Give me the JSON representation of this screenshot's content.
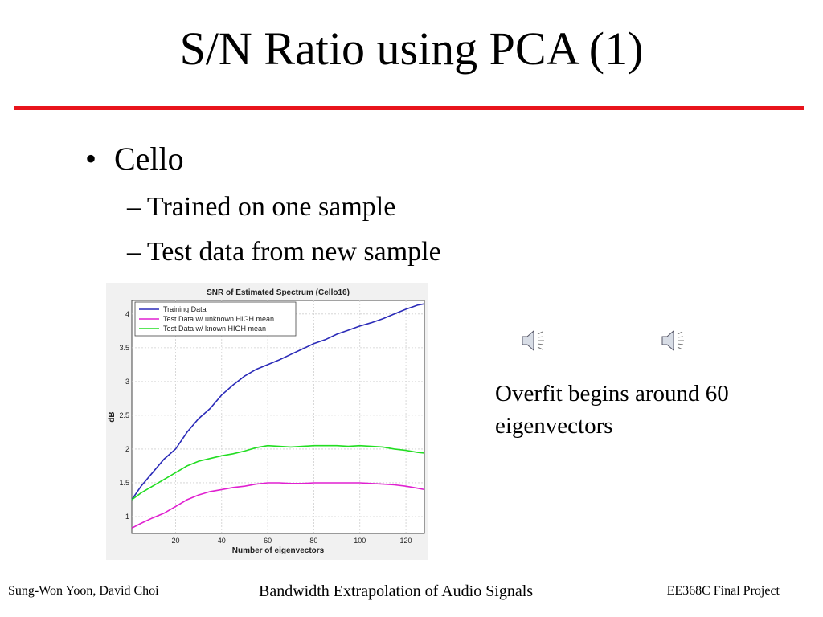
{
  "slide": {
    "title": "S/N Ratio using PCA (1)",
    "accent_color": "#e8141c",
    "bullets": {
      "level1": "Cello",
      "level2": [
        "– Trained on one sample",
        "– Test data from new sample"
      ]
    },
    "note": "Overfit begins around 60 eigenvectors",
    "audio_icons": [
      "speaker-icon",
      "speaker-icon"
    ]
  },
  "footer": {
    "left": "Sung-Won Yoon, David Choi",
    "center": "Bandwidth Extrapolation of Audio Signals",
    "right": "EE368C Final Project"
  },
  "chart_data": {
    "type": "line",
    "title": "SNR of Estimated Spectrum (Cello16)",
    "xlabel": "Number of eigenvectors",
    "ylabel": "dB",
    "xlim": [
      1,
      128
    ],
    "ylim": [
      0.75,
      4.2
    ],
    "xticks": [
      20,
      40,
      60,
      80,
      100,
      120
    ],
    "yticks": [
      1,
      1.5,
      2,
      2.5,
      3,
      3.5,
      4
    ],
    "grid": true,
    "legend": "top-left",
    "series": [
      {
        "name": "Training Data",
        "color": "#2b2bb8",
        "x": [
          1,
          5,
          10,
          15,
          20,
          25,
          30,
          35,
          40,
          45,
          50,
          55,
          60,
          65,
          70,
          75,
          80,
          85,
          90,
          95,
          100,
          105,
          110,
          115,
          120,
          125,
          128
        ],
        "y": [
          1.25,
          1.45,
          1.65,
          1.85,
          2.0,
          2.25,
          2.45,
          2.6,
          2.8,
          2.95,
          3.08,
          3.18,
          3.25,
          3.32,
          3.4,
          3.48,
          3.56,
          3.62,
          3.7,
          3.76,
          3.82,
          3.87,
          3.93,
          4.0,
          4.07,
          4.13,
          4.15
        ]
      },
      {
        "name": "Test Data w/ unknown HIGH mean",
        "color": "#e020d0",
        "x": [
          1,
          5,
          10,
          15,
          20,
          25,
          30,
          35,
          40,
          45,
          50,
          55,
          60,
          65,
          70,
          75,
          80,
          85,
          90,
          95,
          100,
          105,
          110,
          115,
          120,
          125,
          128
        ],
        "y": [
          0.83,
          0.9,
          0.98,
          1.05,
          1.15,
          1.25,
          1.32,
          1.37,
          1.4,
          1.43,
          1.45,
          1.48,
          1.5,
          1.5,
          1.49,
          1.49,
          1.5,
          1.5,
          1.5,
          1.5,
          1.5,
          1.49,
          1.48,
          1.47,
          1.45,
          1.42,
          1.4
        ]
      },
      {
        "name": "Test Data w/ known HIGH mean",
        "color": "#22dd22",
        "x": [
          1,
          5,
          10,
          15,
          20,
          25,
          30,
          35,
          40,
          45,
          50,
          55,
          60,
          65,
          70,
          75,
          80,
          85,
          90,
          95,
          100,
          105,
          110,
          115,
          120,
          125,
          128
        ],
        "y": [
          1.25,
          1.35,
          1.45,
          1.55,
          1.65,
          1.75,
          1.82,
          1.86,
          1.9,
          1.93,
          1.97,
          2.02,
          2.05,
          2.04,
          2.03,
          2.04,
          2.05,
          2.05,
          2.05,
          2.04,
          2.05,
          2.04,
          2.03,
          2.0,
          1.98,
          1.95,
          1.94
        ]
      }
    ]
  }
}
